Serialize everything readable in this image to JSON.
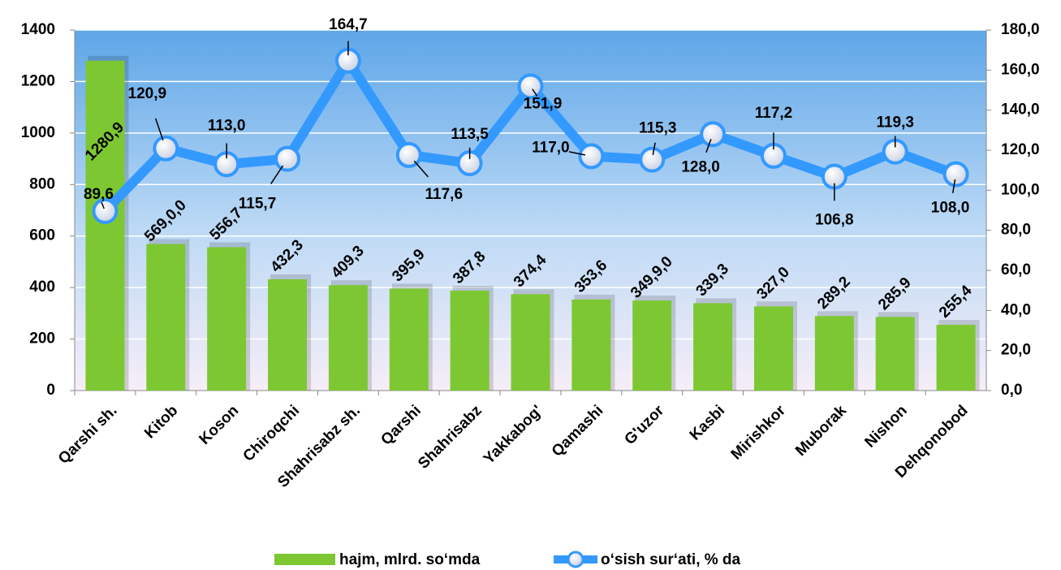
{
  "chart_data": {
    "type": "bar_line",
    "categories": [
      "Qarshi sh.",
      "Kitob",
      "Koson",
      "Chiroqchi",
      "Shahrisabz sh.",
      "Qarshi",
      "Shahrisabz",
      "Yakkabog'",
      "Qamashi",
      "G'uzor",
      "Kasbi",
      "Mirishkor",
      "Muborak",
      "Nishon",
      "Dehqonobod"
    ],
    "series": [
      {
        "name": "hajm, mlrd. so‘mda",
        "type": "bar",
        "color": "#7dc832",
        "values": [
          1280.9,
          569.0,
          556.7,
          432.3,
          409.3,
          395.9,
          387.8,
          374.4,
          353.6,
          349.9,
          339.3,
          327.0,
          289.2,
          285.9,
          255.4
        ],
        "value_labels": [
          "1280,9",
          "569,0,0",
          "556,7",
          "432,3",
          "409,3",
          "395,9",
          "387,8",
          "374,4",
          "353,6",
          "349,9,0",
          "339,3",
          "327,0",
          "289,2",
          "285,9",
          "255,4"
        ]
      },
      {
        "name": "o‘sish sur‘ati, % da",
        "type": "line",
        "axis": "y2",
        "color": "#3399ff",
        "values": [
          89.6,
          120.9,
          113.0,
          115.7,
          164.7,
          117.6,
          113.5,
          151.9,
          117.0,
          115.3,
          128.0,
          117.2,
          106.8,
          119.3,
          108.0
        ],
        "value_labels": [
          "89,6",
          "120,9",
          "113,0",
          "115,7",
          "164,7",
          "117,6",
          "113,5",
          "151,9",
          "117,0",
          "115,3",
          "128,0",
          "117,2",
          "106,8",
          "119,3",
          "108,0"
        ]
      }
    ],
    "ylim": [
      0,
      1400
    ],
    "yticks": [
      0,
      200,
      400,
      600,
      800,
      1000,
      1200,
      1400
    ],
    "y2lim": [
      0,
      180
    ],
    "y2ticks": [
      {
        "value": 0,
        "label": "0,0"
      },
      {
        "value": 20,
        "label": "20,0"
      },
      {
        "value": 40,
        "label": "40,0"
      },
      {
        "value": 60,
        "label": "60,0"
      },
      {
        "value": 80,
        "label": "80,0"
      },
      {
        "value": 100,
        "label": "100,0"
      },
      {
        "value": 120,
        "label": "120,0"
      },
      {
        "value": 140,
        "label": "140,0"
      },
      {
        "value": 160,
        "label": "160,0"
      },
      {
        "value": 180,
        "label": "180,0"
      }
    ],
    "grid": true,
    "legend": "bottom"
  }
}
